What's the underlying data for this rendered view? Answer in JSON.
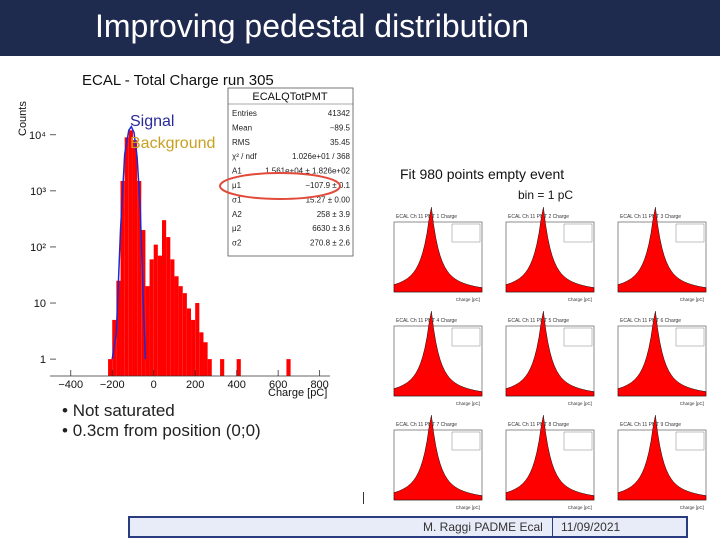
{
  "slide": {
    "title": "Improving pedestal distribution",
    "footer_author": "M. Raggi PADME Ecal",
    "footer_date": "11/09/2021"
  },
  "colors": {
    "title_bg": "#1f2a4f",
    "hist_fill": "#ff0000",
    "fit_line": "#1a2bd6",
    "signal_text": "#2a2a9a",
    "background_text": "#c8a020",
    "ellipse": "#e24a3a"
  },
  "chart_data": [
    {
      "type": "bar",
      "title": "ECAL - Total Charge run 305",
      "xlabel": "Charge [pC]",
      "ylabel": "Counts",
      "yscale": "log",
      "xlim": [
        -500,
        850
      ],
      "ylim": [
        0.5,
        30000
      ],
      "x_ticks": [
        -400,
        -200,
        0,
        200,
        400,
        600,
        800
      ],
      "x_tick_labels": [
        "−400",
        "−200",
        "0",
        "200",
        "400",
        "600",
        "800"
      ],
      "y_ticks": [
        1,
        10,
        100,
        1000,
        10000
      ],
      "y_tick_labels": [
        "1",
        "10",
        "10²",
        "10³",
        "10⁴"
      ],
      "legend_entries": [
        "Signal",
        "Background"
      ],
      "bin_width": 20,
      "bins": [
        {
          "x": -220,
          "count": 1
        },
        {
          "x": -200,
          "count": 5
        },
        {
          "x": -180,
          "count": 25
        },
        {
          "x": -160,
          "count": 1500
        },
        {
          "x": -140,
          "count": 9000
        },
        {
          "x": -120,
          "count": 12000
        },
        {
          "x": -100,
          "count": 8000
        },
        {
          "x": -80,
          "count": 1500
        },
        {
          "x": -60,
          "count": 200
        },
        {
          "x": -40,
          "count": 20
        },
        {
          "x": -20,
          "count": 60
        },
        {
          "x": 0,
          "count": 110
        },
        {
          "x": 20,
          "count": 70
        },
        {
          "x": 40,
          "count": 300
        },
        {
          "x": 60,
          "count": 150
        },
        {
          "x": 80,
          "count": 60
        },
        {
          "x": 100,
          "count": 30
        },
        {
          "x": 120,
          "count": 20
        },
        {
          "x": 140,
          "count": 15
        },
        {
          "x": 160,
          "count": 8
        },
        {
          "x": 180,
          "count": 5
        },
        {
          "x": 200,
          "count": 10
        },
        {
          "x": 220,
          "count": 3
        },
        {
          "x": 240,
          "count": 2
        },
        {
          "x": 260,
          "count": 1
        },
        {
          "x": 320,
          "count": 1
        },
        {
          "x": 400,
          "count": 1
        },
        {
          "x": 640,
          "count": 1
        }
      ],
      "fit_curve": {
        "x": [
          -200,
          -180,
          -160,
          -140,
          -120,
          -108,
          -95,
          -80,
          -65,
          -50,
          -40
        ],
        "y": [
          1,
          3,
          200,
          4500,
          12000,
          14000,
          11000,
          4000,
          500,
          10,
          1
        ]
      },
      "stats_box": {
        "title": "ECALQTotPMT",
        "rows": [
          [
            "Entries",
            "41342"
          ],
          [
            "Mean",
            "−89.5"
          ],
          [
            "RMS",
            "35.45"
          ],
          [
            "χ² / ndf",
            "1.026e+01 / 368"
          ],
          [
            "A1",
            "1.561e+04 ± 1.826e+02"
          ],
          [
            "μ1",
            "−107.9 ± 0.1"
          ],
          [
            "σ1",
            "15.27 ± 0.00"
          ],
          [
            "A2",
            "258 ± 3.9"
          ],
          [
            "μ2",
            "6630 ± 3.6"
          ],
          [
            "σ2",
            "270.8 ± 2.6"
          ]
        ]
      }
    }
  ],
  "left_notes": [
    "Not saturated",
    "0.3cm from position (0;0)"
  ],
  "right_panel": {
    "caption": "Fit 980 points empty event",
    "bin_label": "bin = 1 pC",
    "mini_titles": [
      "ECAL Ch 11 PMT 1 Charge",
      "ECAL Ch 11 PMT 2 Charge",
      "ECAL Ch 11 PMT 3 Charge",
      "ECAL Ch 11 PMT 4 Charge",
      "ECAL Ch 11 PMT 5 Charge",
      "ECAL Ch 11 PMT 6 Charge",
      "ECAL Ch 11 PMT 7 Charge",
      "ECAL Ch 11 PMT 8 Charge",
      "ECAL Ch 11 PMT 9 Charge"
    ],
    "mini_xlabel": "Charge [pC]"
  }
}
